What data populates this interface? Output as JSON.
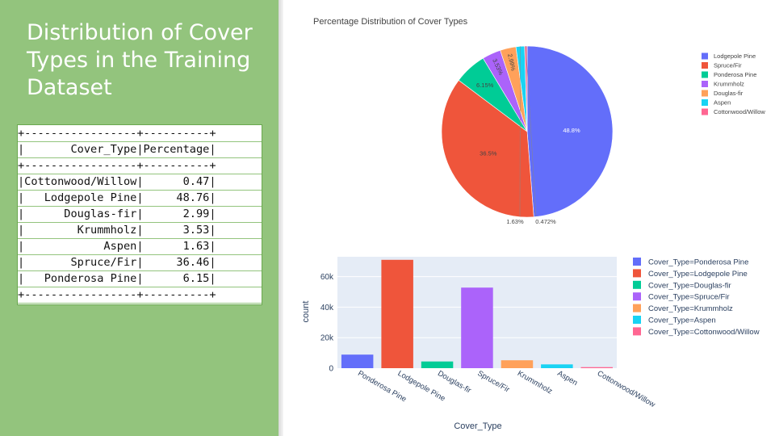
{
  "slide": {
    "title": "Distribution of Cover Types in the Training Dataset",
    "background_color": "#93c47d"
  },
  "table": {
    "lines": [
      "+-----------------+----------+",
      "|       Cover_Type|Percentage|",
      "+-----------------+----------+",
      "|Cottonwood/Willow|      0.47|",
      "|   Lodgepole Pine|     48.76|",
      "|      Douglas-fir|      2.99|",
      "|        Krummholz|      3.53|",
      "|            Aspen|      1.63|",
      "|       Spruce/Fir|     36.46|",
      "|   Ponderosa Pine|      6.15|",
      "+-----------------+----------+"
    ]
  },
  "chart_data": [
    {
      "type": "pie",
      "title": "Percentage Distribution of Cover Types",
      "labels": [
        "Lodgepole Pine",
        "Spruce/Fir",
        "Ponderosa Pine",
        "Krummholz",
        "Douglas-fir",
        "Aspen",
        "Cottonwood/Willow"
      ],
      "values": [
        48.8,
        36.5,
        6.15,
        3.53,
        2.99,
        1.63,
        0.472
      ],
      "value_labels": [
        "48.8%",
        "36.5%",
        "6.15%",
        "3.53%",
        "2.99%",
        "1.63%",
        "0.472%"
      ],
      "colors": [
        "#636efa",
        "#ef553b",
        "#00cc96",
        "#ab63fa",
        "#ffa15a",
        "#19d3f3",
        "#ff6692"
      ],
      "legend_position": "right"
    },
    {
      "type": "bar",
      "categories": [
        "Ponderosa Pine",
        "Lodgepole Pine",
        "Douglas-fir",
        "Spruce/Fir",
        "Krummholz",
        "Aspen",
        "Cottonwood/Willow"
      ],
      "values": [
        8900,
        71000,
        4400,
        52800,
        5200,
        2500,
        700
      ],
      "series_names": [
        "Cover_Type=Ponderosa Pine",
        "Cover_Type=Lodgepole Pine",
        "Cover_Type=Douglas-fir",
        "Cover_Type=Spruce/Fir",
        "Cover_Type=Krummholz",
        "Cover_Type=Aspen",
        "Cover_Type=Cottonwood/Willow"
      ],
      "colors": [
        "#636efa",
        "#ef553b",
        "#00cc96",
        "#ab63fa",
        "#ffa15a",
        "#19d3f3",
        "#ff6692"
      ],
      "xlabel": "Cover_Type",
      "ylabel": "count",
      "yticks": [
        0,
        20000,
        40000,
        60000
      ],
      "ytick_labels": [
        "0",
        "20k",
        "40k",
        "60k"
      ],
      "ylim": [
        0,
        73000
      ],
      "grid": true,
      "plot_background": "#e5ecf6",
      "legend_position": "right"
    }
  ]
}
